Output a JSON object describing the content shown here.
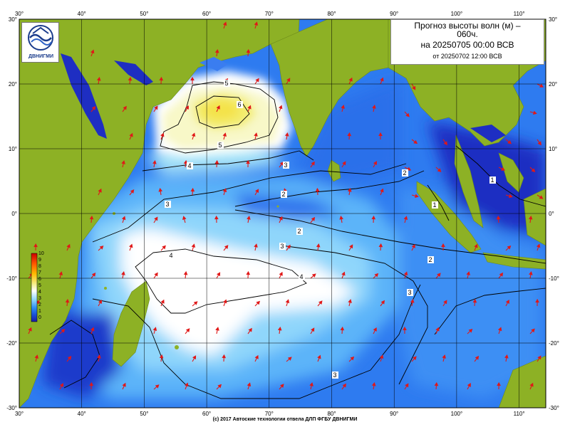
{
  "title": {
    "line1": "Прогноз высоты волн (м) –",
    "line2": "060ч.",
    "line3": "на 20250705 00:00 ВСВ",
    "line4": "от 20250702 12:00 ВСВ"
  },
  "logo": {
    "text": "ДВНИГМИ",
    "icon": "wave-logo-icon"
  },
  "footer": "(c) 2017 Автоские технологии отвела ДЛП ФГБУ ДВНИГМИ",
  "axes": {
    "lon_top": [
      "30°",
      "40°",
      "50°",
      "60°",
      "70°",
      "80°",
      "90°",
      "100°",
      "110°"
    ],
    "lon_bottom": [
      "30°",
      "40°",
      "50°",
      "60°",
      "70°",
      "80°",
      "90°",
      "100°",
      "110°"
    ],
    "lat_left": [
      "30°",
      "20°",
      "10°",
      "0°",
      "-10°",
      "-20°",
      "-30°"
    ],
    "lat_right": [
      "30°",
      "20°",
      "10°",
      "0°",
      "-10°",
      "-20°",
      "-30°"
    ]
  },
  "legend": {
    "labels": [
      "10",
      "9",
      "8",
      "7",
      "6",
      "5",
      "4",
      "3",
      "2",
      "1",
      "0"
    ],
    "colors": [
      "#cc0000",
      "#ee3300",
      "#ff7700",
      "#ffbb00",
      "#f6f08a",
      "#f8f8c8",
      "#ffffff",
      "#a8e4f8",
      "#3aa0ff",
      "#1a5ce0",
      "#1e1eb0"
    ]
  },
  "contour_labels": [
    "5",
    "6",
    "5",
    "4",
    "3",
    "2",
    "2",
    "1",
    "1",
    "3",
    "2",
    "3",
    "4",
    "4",
    "3",
    "2",
    "3"
  ],
  "colors": {
    "land": "#8db125",
    "deep": "#1e2ec2",
    "mid": "#2e7bf0",
    "light": "#8fd6fb",
    "calm_max": "#ffffff",
    "peak": "#f7f08c",
    "arrow": "#e01818",
    "grid": "#000000"
  }
}
